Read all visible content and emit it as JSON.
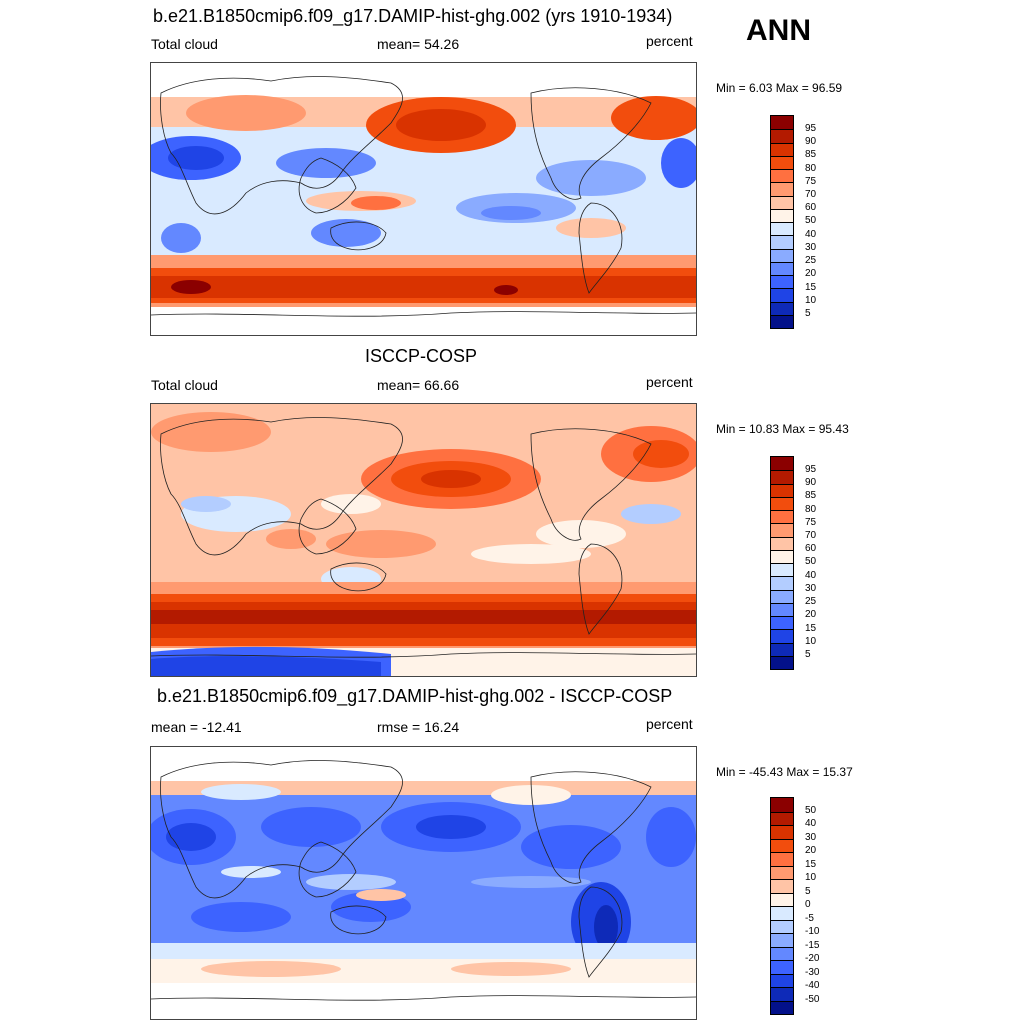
{
  "season": "ANN",
  "panels": [
    {
      "title": "b.e21.B1850cmip6.f09_g17.DAMIP-hist-ghg.002 (yrs 1910-1934)",
      "left_label": "Total cloud",
      "center_label": "mean=  54.26",
      "right_label": "percent",
      "minmax": "Min =   6.03 Max =  96.59",
      "colorbar": {
        "levels": [
          "95",
          "90",
          "85",
          "80",
          "75",
          "70",
          "60",
          "50",
          "40",
          "30",
          "25",
          "20",
          "15",
          "10",
          "5"
        ],
        "colors": [
          "#8b0000",
          "#b31a00",
          "#d93300",
          "#f24d0d",
          "#ff7040",
          "#ff9a70",
          "#ffc4a6",
          "#fff3e8",
          "#d9eaff",
          "#b3cdff",
          "#8aabff",
          "#6388ff",
          "#3d63ff",
          "#1f44e6",
          "#0e2ab8",
          "#03118a"
        ]
      }
    },
    {
      "title": "ISCCP-COSP",
      "left_label": "Total cloud",
      "center_label": "mean=  66.66",
      "right_label": "percent",
      "minmax": "Min =  10.83 Max =  95.43",
      "colorbar": {
        "levels": [
          "95",
          "90",
          "85",
          "80",
          "75",
          "70",
          "60",
          "50",
          "40",
          "30",
          "25",
          "20",
          "15",
          "10",
          "5"
        ],
        "colors": [
          "#8b0000",
          "#b31a00",
          "#d93300",
          "#f24d0d",
          "#ff7040",
          "#ff9a70",
          "#ffc4a6",
          "#fff3e8",
          "#d9eaff",
          "#b3cdff",
          "#8aabff",
          "#6388ff",
          "#3d63ff",
          "#1f44e6",
          "#0e2ab8",
          "#03118a"
        ]
      }
    },
    {
      "title": "b.e21.B1850cmip6.f09_g17.DAMIP-hist-ghg.002 - ISCCP-COSP",
      "left_label": "mean = -12.41",
      "center_label": "rmse =  16.24",
      "right_label": "percent",
      "minmax": "Min = -45.43 Max =  15.37",
      "colorbar": {
        "levels": [
          "50",
          "40",
          "30",
          "20",
          "15",
          "10",
          "5",
          "0",
          "-5",
          "-10",
          "-15",
          "-20",
          "-30",
          "-40",
          "-50"
        ],
        "colors": [
          "#8b0000",
          "#b31a00",
          "#d93300",
          "#f24d0d",
          "#ff7040",
          "#ff9a70",
          "#ffc4a6",
          "#fff3e8",
          "#d9eaff",
          "#b3cdff",
          "#8aabff",
          "#6388ff",
          "#3d63ff",
          "#1f44e6",
          "#0e2ab8",
          "#03118a"
        ]
      }
    }
  ]
}
